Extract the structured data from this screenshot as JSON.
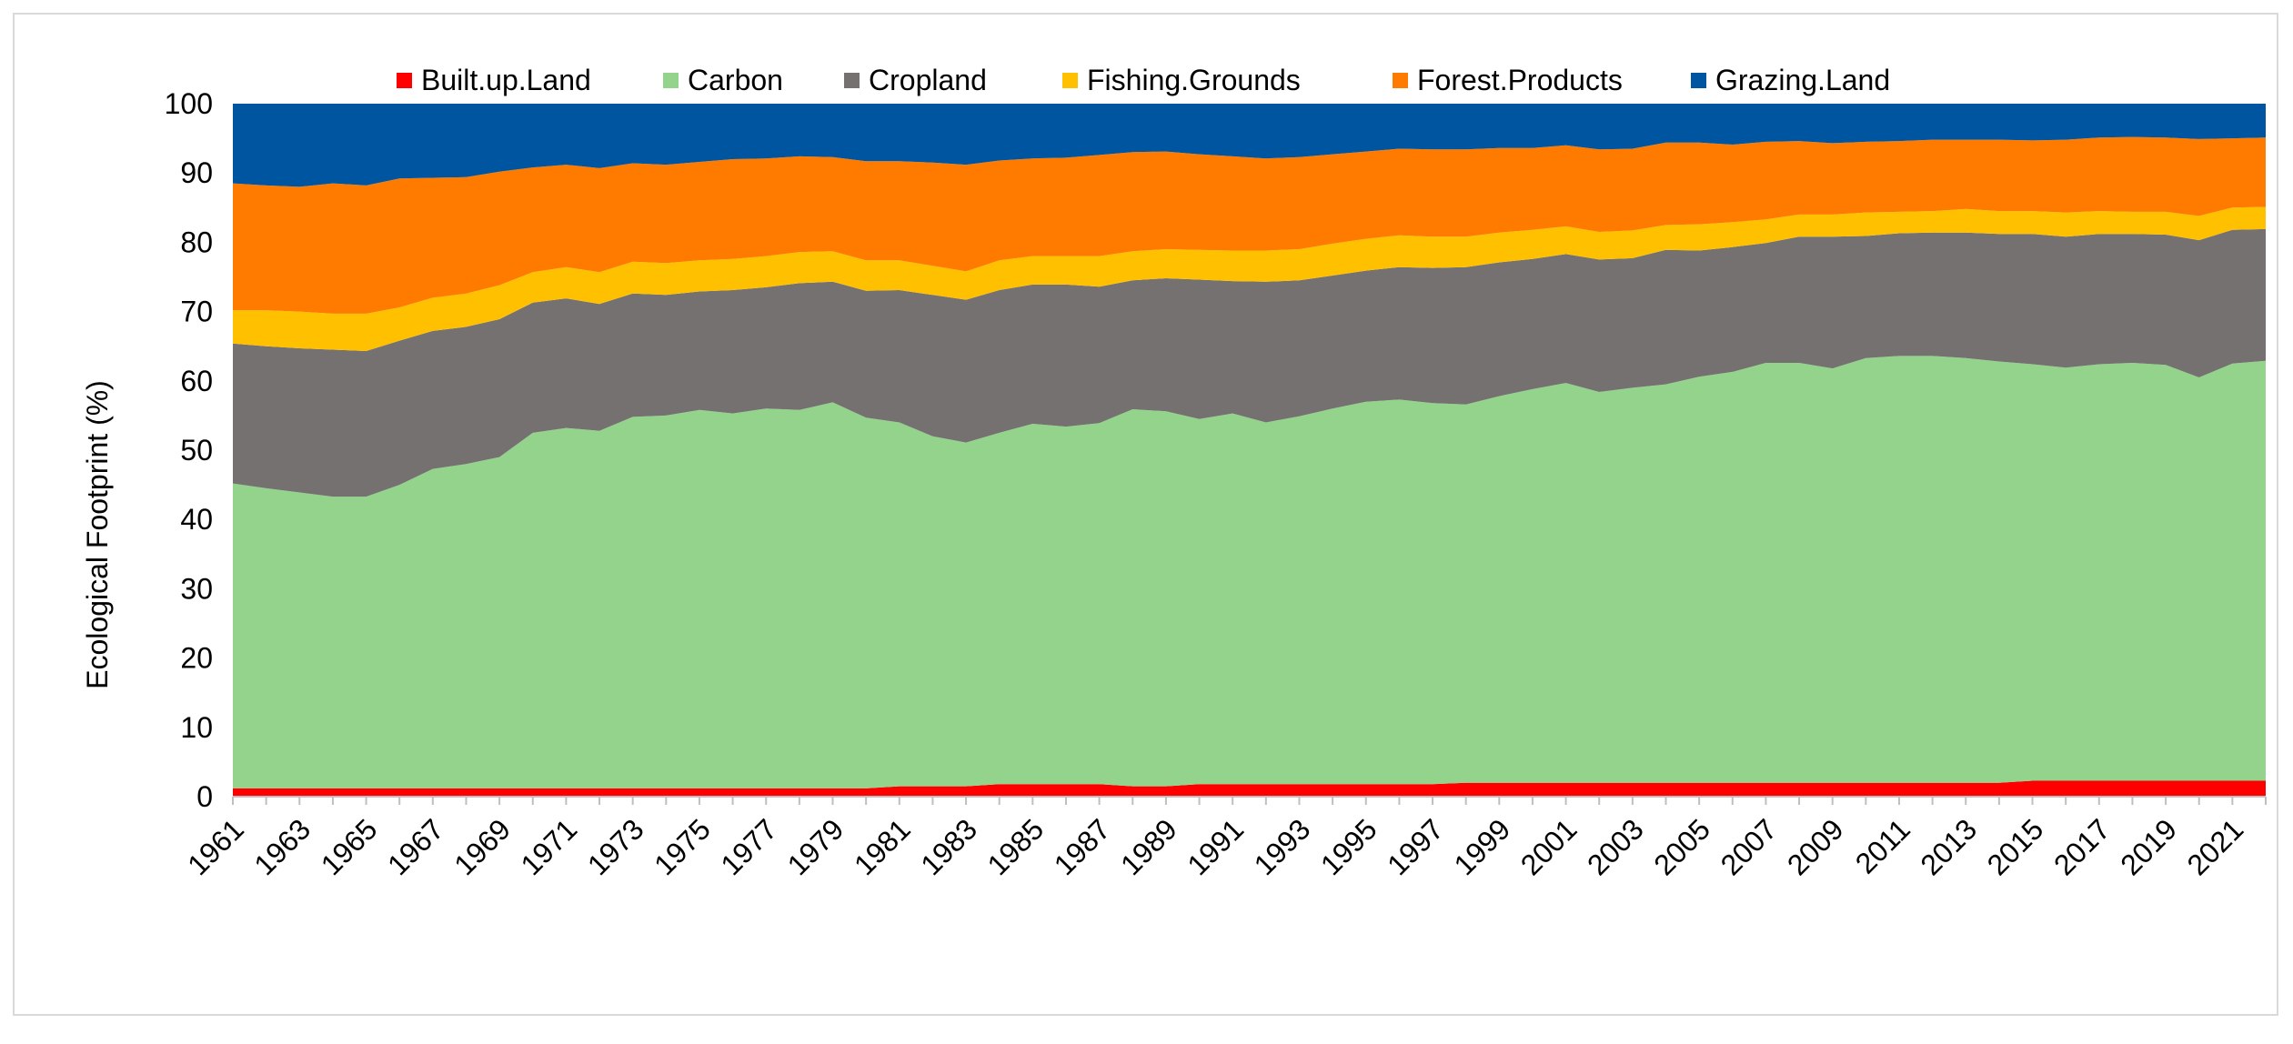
{
  "chart_data": {
    "type": "area",
    "stacked": true,
    "title": "",
    "xlabel": "",
    "ylabel": "Ecological Footprint (%)",
    "ylim": [
      0,
      100
    ],
    "yticks": [
      0,
      10,
      20,
      30,
      40,
      50,
      60,
      70,
      80,
      90,
      100
    ],
    "grid": false,
    "legend_position": "top-center",
    "x": [
      1961,
      1962,
      1963,
      1964,
      1965,
      1966,
      1967,
      1968,
      1969,
      1970,
      1971,
      1972,
      1973,
      1974,
      1975,
      1976,
      1977,
      1978,
      1979,
      1980,
      1981,
      1982,
      1983,
      1984,
      1985,
      1986,
      1987,
      1988,
      1989,
      1990,
      1991,
      1992,
      1993,
      1994,
      1995,
      1996,
      1997,
      1998,
      1999,
      2000,
      2001,
      2002,
      2003,
      2004,
      2005,
      2006,
      2007,
      2008,
      2009,
      2010,
      2011,
      2012,
      2013,
      2014,
      2015,
      2016,
      2017,
      2018,
      2019,
      2020,
      2021,
      2022
    ],
    "xtick_labels": [
      "1961",
      "1963",
      "1965",
      "1967",
      "1969",
      "1971",
      "1973",
      "1975",
      "1977",
      "1979",
      "1981",
      "1983",
      "1985",
      "1987",
      "1989",
      "1991",
      "1993",
      "1995",
      "1997",
      "1999",
      "2001",
      "2003",
      "2005",
      "2007",
      "2009",
      "2011",
      "2013",
      "2015",
      "2017",
      "2019",
      "2021"
    ],
    "series": [
      {
        "name": "Built.up.Land",
        "color": "#ff0000",
        "values": [
          1.2,
          1.2,
          1.2,
          1.2,
          1.2,
          1.2,
          1.2,
          1.2,
          1.2,
          1.2,
          1.2,
          1.2,
          1.2,
          1.2,
          1.2,
          1.2,
          1.2,
          1.2,
          1.2,
          1.2,
          1.5,
          1.5,
          1.5,
          1.8,
          1.8,
          1.8,
          1.8,
          1.5,
          1.5,
          1.8,
          1.8,
          1.8,
          1.8,
          1.8,
          1.8,
          1.8,
          1.8,
          2.0,
          2.0,
          2.0,
          2.0,
          2.0,
          2.0,
          2.0,
          2.0,
          2.0,
          2.0,
          2.0,
          2.0,
          2.0,
          2.0,
          2.0,
          2.0,
          2.0,
          2.3,
          2.3,
          2.3,
          2.3,
          2.3,
          2.3,
          2.3,
          2.3
        ]
      },
      {
        "name": "Carbon",
        "color": "#93d38b",
        "values": [
          44,
          43.3,
          42.7,
          42.1,
          42.1,
          43.8,
          46.1,
          46.8,
          47.8,
          51.3,
          52,
          51.6,
          53.6,
          53.8,
          54.6,
          54.1,
          54.8,
          54.6,
          55.7,
          53.5,
          52.5,
          50.5,
          49.6,
          50.7,
          52,
          51.6,
          52.1,
          54.4,
          54.1,
          52.7,
          53.5,
          52.2,
          53.1,
          54.2,
          55.2,
          55.5,
          55,
          54.6,
          55.8,
          56.8,
          57.7,
          56.4,
          57,
          57.5,
          58.6,
          59.3,
          60.6,
          60.6,
          59.8,
          61.3,
          61.6,
          61.6,
          61.3,
          60.8,
          60.1,
          59.6,
          60.1,
          60.3,
          60,
          58.2,
          60.2,
          60.6
        ]
      },
      {
        "name": "Cropland",
        "color": "#767171",
        "values": [
          20.2,
          20.5,
          20.8,
          21.2,
          21,
          20.8,
          19.9,
          19.8,
          19.9,
          18.8,
          18.7,
          18.3,
          17.8,
          17.4,
          17.1,
          17.8,
          17.5,
          18.3,
          17.4,
          18.3,
          19.1,
          20.4,
          20.6,
          20.6,
          20.1,
          20.5,
          19.7,
          18.6,
          19.2,
          20.1,
          19.1,
          20.3,
          19.6,
          19.2,
          18.9,
          19.1,
          19.5,
          19.8,
          19.3,
          18.8,
          18.6,
          19.1,
          18.7,
          19.4,
          18.2,
          18,
          17.3,
          18.2,
          19,
          17.6,
          17.7,
          17.8,
          18.1,
          18.4,
          18.8,
          18.9,
          18.8,
          18.6,
          18.8,
          19.8,
          19.3,
          19
        ]
      },
      {
        "name": "Fishing.Grounds",
        "color": "#ffc000",
        "values": [
          4.8,
          5.2,
          5.3,
          5.2,
          5.4,
          4.8,
          4.8,
          4.8,
          4.9,
          4.4,
          4.5,
          4.6,
          4.6,
          4.6,
          4.5,
          4.5,
          4.5,
          4.5,
          4.4,
          4.4,
          4.3,
          4.2,
          4.1,
          4.3,
          4.1,
          4.1,
          4.4,
          4.2,
          4.2,
          4.3,
          4.4,
          4.5,
          4.5,
          4.6,
          4.6,
          4.6,
          4.5,
          4.4,
          4.3,
          4.2,
          4.0,
          4.0,
          4.0,
          3.6,
          3.8,
          3.6,
          3.4,
          3.2,
          3.2,
          3.4,
          3.1,
          3.1,
          3.4,
          3.3,
          3.3,
          3.5,
          3.3,
          3.2,
          3.3,
          3.5,
          3.2,
          3.2
        ]
      },
      {
        "name": "Forest.Products",
        "color": "#ff7b00",
        "values": [
          18.3,
          18,
          18,
          18.8,
          18.5,
          18.6,
          17.3,
          16.8,
          16.4,
          15.1,
          14.8,
          15,
          14.2,
          14.2,
          14.2,
          14.4,
          14.1,
          13.8,
          13.6,
          14.3,
          14.3,
          14.9,
          15.4,
          14.4,
          14.1,
          14.2,
          14.6,
          14.3,
          14.1,
          13.8,
          13.6,
          13.3,
          13.3,
          12.9,
          12.6,
          12.5,
          12.6,
          12.6,
          12.2,
          11.8,
          11.7,
          11.9,
          11.8,
          11.9,
          11.8,
          11.2,
          11.2,
          10.6,
          10.3,
          10.2,
          10.2,
          10.3,
          10,
          10.3,
          10.2,
          10.5,
          10.6,
          10.8,
          10.7,
          11.1,
          10,
          10
        ]
      },
      {
        "name": "Grazing.Land",
        "color": "#0055a0",
        "values": [
          11.5,
          11.8,
          12,
          11.5,
          11.8,
          10.8,
          10.7,
          10.6,
          10.4,
          9.2,
          8.8,
          9.3,
          8.6,
          8.8,
          8.4,
          8.0,
          7.9,
          7.6,
          7.7,
          8.3,
          8.6,
          8.5,
          8.8,
          8.2,
          7.9,
          7.8,
          7.4,
          7.0,
          6.9,
          7.3,
          7.6,
          7.9,
          7.7,
          7.3,
          6.9,
          6.5,
          6.6,
          6.6,
          6.4,
          6.4,
          6.0,
          6.6,
          6.5,
          5.6,
          5.6,
          5.9,
          5.5,
          5.4,
          5.7,
          5.5,
          5.4,
          5.2,
          5.2,
          5.2,
          5.3,
          5.2,
          4.9,
          4.8,
          4.9,
          5.1,
          5.0,
          4.9
        ]
      }
    ]
  }
}
